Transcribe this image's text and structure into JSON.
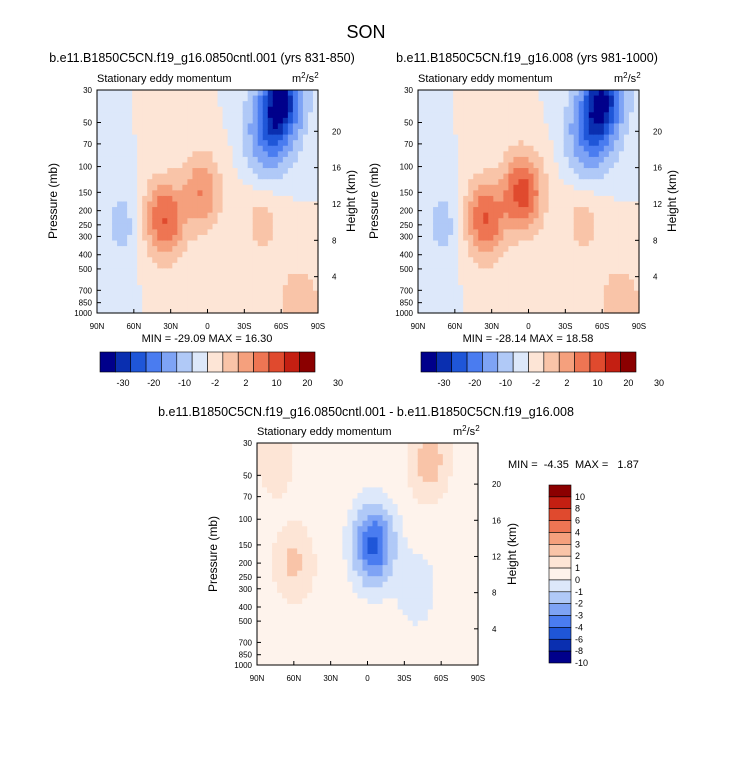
{
  "figure_title": "SON",
  "chart_data": [
    {
      "type": "heatmap",
      "title": "b.e11.B1850C5CN.f19_g16.0850cntl.001 (yrs 831-850)",
      "left_subtitle": "Stationary eddy momentum",
      "units_base": "m",
      "units_exp1": "2",
      "units_mid": "/s",
      "units_exp2": "2",
      "ylabel": "Pressure (mb)",
      "ylabel_right": "Height (km)",
      "x_ticks": [
        "90N",
        "60N",
        "30N",
        "0",
        "30S",
        "60S",
        "90S"
      ],
      "y_ticks": [
        "30",
        "50",
        "70",
        "100",
        "150",
        "200",
        "250",
        "300",
        "400",
        "500",
        "700",
        "850",
        "1000"
      ],
      "height_ticks": [
        "20",
        "16",
        "12",
        "8",
        "4"
      ],
      "stats": "MIN = -29.09  MAX = 16.30",
      "min": -29.09,
      "max": 16.3,
      "colorbar_labels": [
        "-30",
        "-20",
        "-10",
        "-2",
        "2",
        "10",
        "20",
        "30"
      ],
      "colorbar_orientation": "horizontal",
      "colors": [
        "#00008b",
        "#0a2fb0",
        "#1f56d8",
        "#4a7cf0",
        "#7ea3f5",
        "#b0c9f7",
        "#dde8fa",
        "#fde5d6",
        "#f9c4a8",
        "#f5a07d",
        "#ee7553",
        "#e04a2e",
        "#c41f12",
        "#8b0000"
      ],
      "features": [
        {
          "lat": 70,
          "p": 250,
          "v": -3
        },
        {
          "lat": 35,
          "p": 230,
          "v": 12
        },
        {
          "lat": 5,
          "p": 150,
          "v": 8
        },
        {
          "lat": -50,
          "p": 60,
          "v": -15
        },
        {
          "lat": -60,
          "p": 35,
          "v": -28
        },
        {
          "lat": -45,
          "p": 250,
          "v": 3
        },
        {
          "lat": -75,
          "p": 900,
          "v": 5
        }
      ]
    },
    {
      "type": "heatmap",
      "title": "b.e11.B1850C5CN.f19_g16.008 (yrs 981-1000)",
      "left_subtitle": "Stationary eddy momentum",
      "units_base": "m",
      "units_exp1": "2",
      "units_mid": "/s",
      "units_exp2": "2",
      "ylabel": "Pressure (mb)",
      "ylabel_right": "Height (km)",
      "x_ticks": [
        "90N",
        "60N",
        "30N",
        "0",
        "30S",
        "60S",
        "90S"
      ],
      "y_ticks": [
        "30",
        "50",
        "70",
        "100",
        "150",
        "200",
        "250",
        "300",
        "400",
        "500",
        "700",
        "850",
        "1000"
      ],
      "height_ticks": [
        "20",
        "16",
        "12",
        "8",
        "4"
      ],
      "stats": "MIN = -28.14  MAX = 18.58",
      "min": -28.14,
      "max": 18.58,
      "colorbar_labels": [
        "-30",
        "-20",
        "-10",
        "-2",
        "2",
        "10",
        "20",
        "30"
      ],
      "colorbar_orientation": "horizontal",
      "colors": [
        "#00008b",
        "#0a2fb0",
        "#1f56d8",
        "#4a7cf0",
        "#7ea3f5",
        "#b0c9f7",
        "#dde8fa",
        "#fde5d6",
        "#f9c4a8",
        "#f5a07d",
        "#ee7553",
        "#e04a2e",
        "#c41f12",
        "#8b0000"
      ],
      "features": [
        {
          "lat": 70,
          "p": 250,
          "v": -3
        },
        {
          "lat": 35,
          "p": 230,
          "v": 12
        },
        {
          "lat": 5,
          "p": 150,
          "v": 14
        },
        {
          "lat": -50,
          "p": 60,
          "v": -15
        },
        {
          "lat": -60,
          "p": 35,
          "v": -27
        },
        {
          "lat": -45,
          "p": 250,
          "v": 3
        },
        {
          "lat": -75,
          "p": 900,
          "v": 5
        }
      ]
    },
    {
      "type": "heatmap",
      "title": "b.e11.B1850C5CN.f19_g16.0850cntl.001 - b.e11.B1850C5CN.f19_g16.008",
      "left_subtitle": "Stationary eddy momentum",
      "units_base": "m",
      "units_exp1": "2",
      "units_mid": "/s",
      "units_exp2": "2",
      "ylabel": "Pressure (mb)",
      "ylabel_right": "Height (km)",
      "x_ticks": [
        "90N",
        "60N",
        "30N",
        "0",
        "30S",
        "60S",
        "90S"
      ],
      "y_ticks": [
        "30",
        "50",
        "70",
        "100",
        "150",
        "200",
        "250",
        "300",
        "400",
        "500",
        "700",
        "850",
        "1000"
      ],
      "height_ticks": [
        "20",
        "16",
        "12",
        "8",
        "4"
      ],
      "stats": "MIN =  -4.35  MAX =   1.87",
      "min": -4.35,
      "max": 1.87,
      "colorbar_labels": [
        "10",
        "8",
        "6",
        "4",
        "3",
        "2",
        "1",
        "0",
        "-1",
        "-2",
        "-3",
        "-4",
        "-6",
        "-8",
        "-10"
      ],
      "colorbar_orientation": "vertical",
      "colors": [
        "#8b0000",
        "#c41f12",
        "#e04a2e",
        "#ee7553",
        "#f5a07d",
        "#f9c4a8",
        "#fde5d6",
        "#fef3ec",
        "#dde8fa",
        "#b0c9f7",
        "#7ea3f5",
        "#4a7cf0",
        "#1f56d8",
        "#0a2fb0",
        "#00008b"
      ],
      "features": [
        {
          "lat": -5,
          "p": 150,
          "v": -4.35
        },
        {
          "lat": 60,
          "p": 200,
          "v": 1.2
        },
        {
          "lat": -50,
          "p": 40,
          "v": 1.5
        },
        {
          "lat": -40,
          "p": 300,
          "v": -0.8
        },
        {
          "lat": 75,
          "p": 40,
          "v": 0.8
        }
      ]
    }
  ]
}
